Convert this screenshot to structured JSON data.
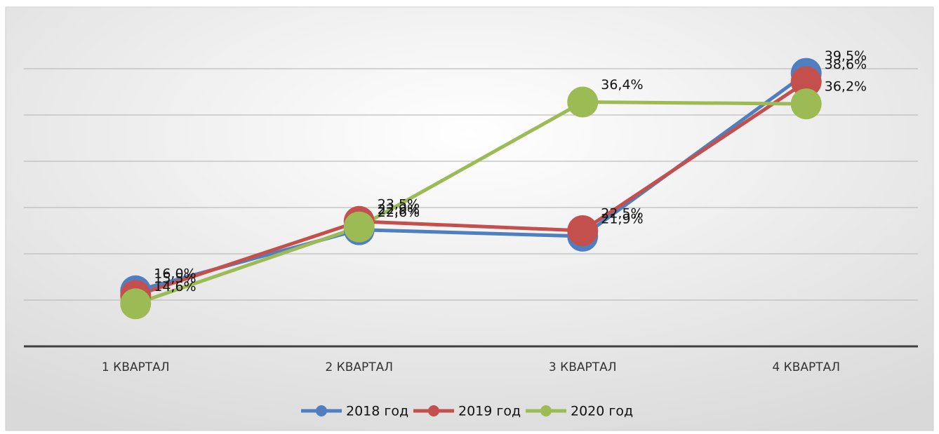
{
  "chart_data": {
    "type": "line",
    "categories": [
      "1 КВАРТАЛ",
      "2 КВАРТАЛ",
      "3 КВАРТАЛ",
      "4 КВАРТАЛ"
    ],
    "series": [
      {
        "name": "2018 год",
        "color": "#4f7fc0",
        "values": [
          16.0,
          22.6,
          21.9,
          39.5
        ],
        "value_labels": [
          "16,0%",
          "22,6%",
          "21,9%",
          "39,5%"
        ]
      },
      {
        "name": "2019 год",
        "color": "#c4504e",
        "values": [
          15.5,
          23.5,
          22.5,
          38.6
        ],
        "value_labels": [
          "15,5%",
          "23,5%",
          "22,5%",
          "38,6%"
        ]
      },
      {
        "name": "2020 год",
        "color": "#9dbb55",
        "values": [
          14.6,
          22.9,
          36.4,
          36.2
        ],
        "value_labels": [
          "14,6%",
          "22,9%",
          "36,4%",
          "36,2%"
        ]
      }
    ],
    "ylim": [
      10,
      45
    ],
    "yticks": [
      10,
      15,
      20,
      25,
      30,
      35,
      40
    ],
    "grid": true,
    "legend": "bottom"
  }
}
